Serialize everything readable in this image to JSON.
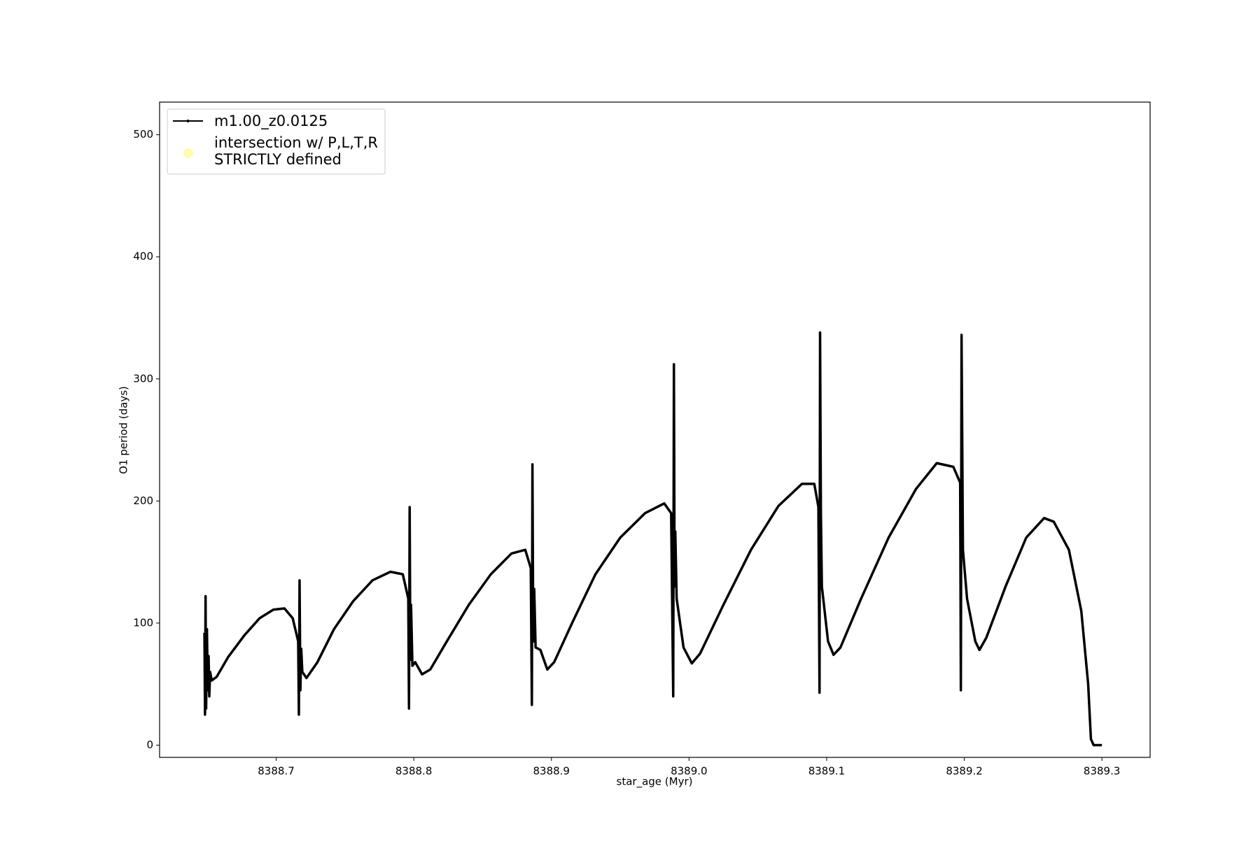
{
  "chart_data": {
    "type": "line",
    "xlabel": "star_age (Myr)",
    "ylabel": "O1 period (days)",
    "xlim": [
      8388.6153,
      8389.335
    ],
    "ylim": [
      -10,
      526.7
    ],
    "xticks": [
      8388.7,
      8388.8,
      8388.9,
      {
        "value": 8389.0,
        "label": "8389.0"
      },
      8389.1,
      8389.2,
      8389.3
    ],
    "yticks": [
      0,
      100,
      200,
      300,
      400,
      500
    ],
    "legend": "upper left",
    "series": [
      {
        "name": "m1.00_z0.0125",
        "color": "#000000",
        "type": "line",
        "x": [
          8388.6479,
          8388.6483,
          8388.6487,
          8388.6491,
          8388.6497,
          8388.6503,
          8388.6509,
          8388.6514,
          8388.652,
          8388.6532,
          8388.6568,
          8388.665,
          8388.6769,
          8388.688,
          8388.698,
          8388.706,
          8388.712,
          8388.716,
          8388.7165,
          8388.717,
          8388.7176,
          8388.7182,
          8388.719,
          8388.722,
          8388.73,
          8388.742,
          8388.756,
          8388.77,
          8388.783,
          8388.792,
          8388.796,
          8388.7965,
          8388.797,
          8388.7975,
          8388.798,
          8388.799,
          8388.801,
          8388.806,
          8388.812,
          8388.824,
          8388.84,
          8388.856,
          8388.871,
          8388.881,
          8388.885,
          8388.8858,
          8388.8862,
          8388.8868,
          8388.8875,
          8388.8885,
          8388.892,
          8388.897,
          8388.902,
          8388.915,
          8388.932,
          8388.95,
          8388.968,
          8388.982,
          8388.987,
          8388.9885,
          8388.989,
          8388.9895,
          8388.99,
          8388.991,
          8388.996,
          8389.002,
          8389.008,
          8389.025,
          8389.045,
          8389.065,
          8389.082,
          8389.091,
          8389.094,
          8389.0948,
          8389.0952,
          8389.0958,
          8389.0965,
          8389.101,
          8389.105,
          8389.11,
          8389.125,
          8389.145,
          8389.165,
          8389.18,
          8389.192,
          8389.197,
          8389.1975,
          8389.198,
          8389.199,
          8389.202,
          8389.208,
          8389.211,
          8389.216,
          8389.23,
          8389.245,
          8389.258,
          8389.265,
          8389.276,
          8389.285,
          8389.29,
          8389.292,
          8389.294,
          8389.3
        ],
        "values": [
          92,
          25,
          122,
          30,
          95,
          45,
          73,
          40,
          60,
          53,
          56,
          72,
          90,
          104,
          111,
          112,
          104,
          85,
          25,
          135,
          45,
          79,
          60,
          55,
          68,
          95,
          118,
          135,
          142,
          140,
          120,
          30,
          195,
          70,
          115,
          65,
          68,
          58,
          62,
          85,
          115,
          140,
          157,
          160,
          145,
          33,
          230,
          85,
          128,
          80,
          78,
          62,
          68,
          100,
          140,
          170,
          190,
          198,
          190,
          40,
          312,
          130,
          175,
          120,
          80,
          67,
          75,
          115,
          160,
          196,
          214,
          214,
          195,
          43,
          338,
          190,
          130,
          85,
          74,
          80,
          120,
          170,
          210,
          231,
          228,
          215,
          45,
          336,
          160,
          120,
          85,
          78,
          88,
          130,
          170,
          186,
          183,
          160,
          110,
          50,
          5,
          0,
          0
        ]
      },
      {
        "name": "intersection w/ P,L,T,R\nSTRICTLY defined",
        "color": "#fffcb0",
        "type": "scatter",
        "x": [],
        "values": []
      }
    ]
  }
}
